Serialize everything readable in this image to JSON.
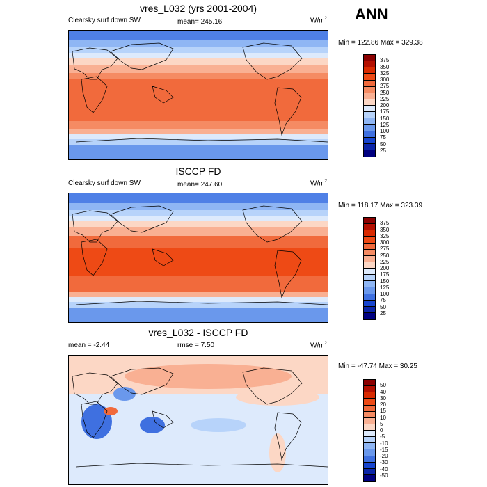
{
  "season": "ANN",
  "panels": [
    {
      "id": "model",
      "title": "vres_L032 (yrs 2001-2004)",
      "left_label": "Clearsky surf down SW",
      "center_label": "mean= 245.16",
      "units": "W/m",
      "units_sup": "2",
      "minmax": "Min = 122.86 Max = 329.38",
      "levels": [
        "375",
        "350",
        "325",
        "300",
        "275",
        "250",
        "225",
        "200",
        "175",
        "150",
        "125",
        "100",
        "75",
        "50",
        "25"
      ],
      "colors": [
        "#8b0000",
        "#b30f00",
        "#d92a00",
        "#ee4a15",
        "#f16a3c",
        "#f58b63",
        "#f9b093",
        "#fcd7c5",
        "#ddeafc",
        "#b7d3fa",
        "#8fb6f4",
        "#6a98ec",
        "#3f70e0",
        "#1745cf",
        "#0b25a8",
        "#000080"
      ]
    },
    {
      "id": "obs",
      "title": "ISCCP FD",
      "left_label": "Clearsky surf down SW",
      "center_label": "mean= 247.60",
      "units": "W/m",
      "units_sup": "2",
      "minmax": "Min = 118.17 Max = 323.39",
      "levels": [
        "375",
        "350",
        "325",
        "300",
        "275",
        "250",
        "225",
        "200",
        "175",
        "150",
        "125",
        "100",
        "75",
        "50",
        "25"
      ],
      "colors": [
        "#8b0000",
        "#b30f00",
        "#d92a00",
        "#ee4a15",
        "#f16a3c",
        "#f58b63",
        "#f9b093",
        "#fcd7c5",
        "#ddeafc",
        "#b7d3fa",
        "#8fb6f4",
        "#6a98ec",
        "#3f70e0",
        "#1745cf",
        "#0b25a8",
        "#000080"
      ]
    },
    {
      "id": "diff",
      "title": "vres_L032 - ISCCP FD",
      "left_label": "mean =  -2.44",
      "center_label": "rmse =   7.50",
      "units": "W/m",
      "units_sup": "2",
      "minmax": "Min = -47.74 Max =  30.25",
      "levels": [
        "50",
        "40",
        "30",
        "20",
        "15",
        "10",
        "5",
        "0",
        "-5",
        "-10",
        "-15",
        "-20",
        "-30",
        "-40",
        "-50"
      ],
      "colors": [
        "#8b0000",
        "#b30f00",
        "#d92a00",
        "#ee4a15",
        "#f16a3c",
        "#f58b63",
        "#f9b093",
        "#fcd7c5",
        "#ddeafc",
        "#b7d3fa",
        "#8fb6f4",
        "#6a98ec",
        "#3f70e0",
        "#1745cf",
        "#0b25a8",
        "#000080"
      ]
    }
  ]
}
